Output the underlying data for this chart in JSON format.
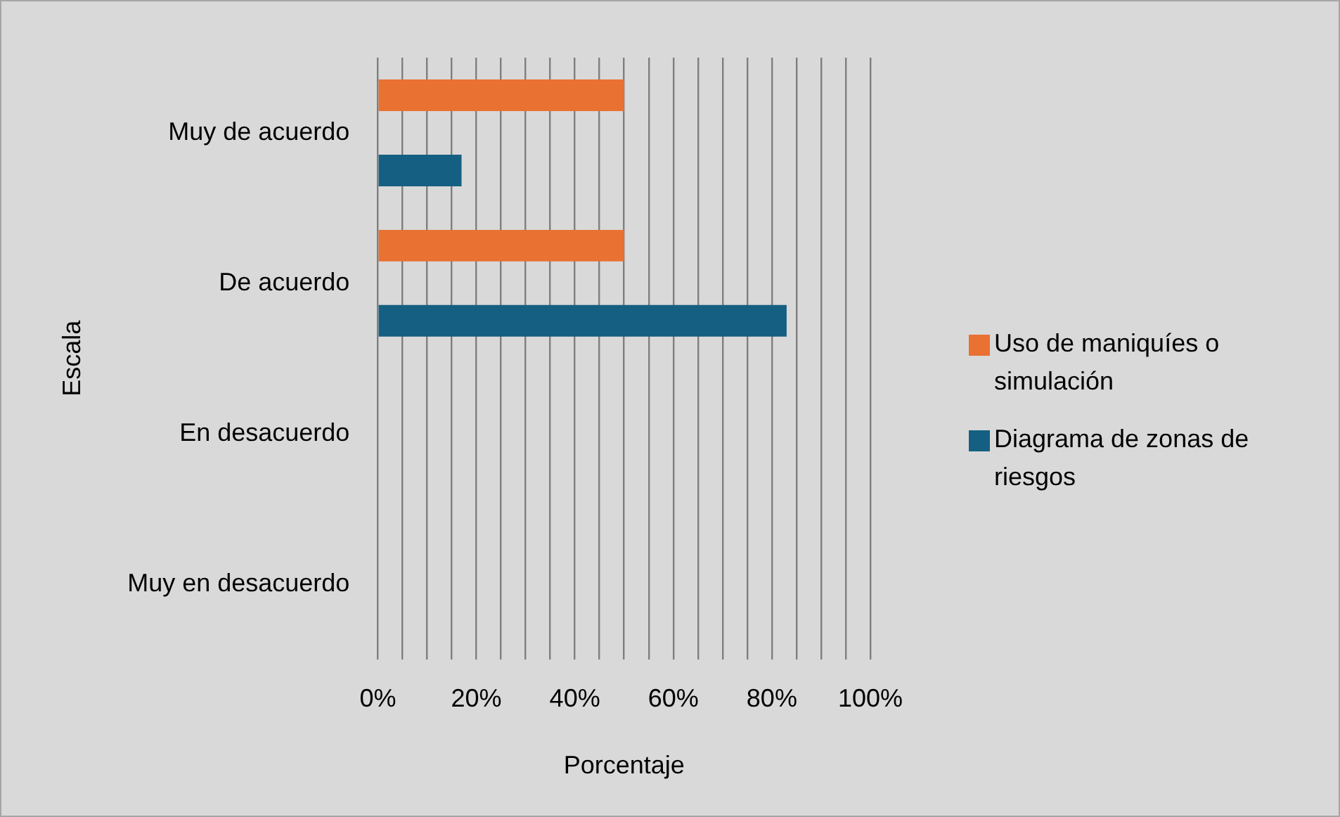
{
  "chart_data": {
    "type": "bar",
    "orientation": "horizontal",
    "ylabel": "Escala",
    "xlabel": "Porcentaje",
    "categories": [
      "Muy de acuerdo",
      "De acuerdo",
      "En desacuerdo",
      "Muy en desacuerdo"
    ],
    "series": [
      {
        "name": "Uso de maniquíes o simulación",
        "color": "#e97132",
        "values": [
          50,
          50,
          null,
          null
        ]
      },
      {
        "name": "Diagrama de zonas de riesgos",
        "color": "#156082",
        "values": [
          17,
          83,
          null,
          null
        ]
      }
    ],
    "xlim": [
      0,
      100
    ],
    "xticks": [
      {
        "value": 0,
        "label": "0%"
      },
      {
        "value": 5,
        "label": null
      },
      {
        "value": 10,
        "label": null
      },
      {
        "value": 15,
        "label": null
      },
      {
        "value": 20,
        "label": "20%"
      },
      {
        "value": 25,
        "label": null
      },
      {
        "value": 30,
        "label": null
      },
      {
        "value": 35,
        "label": null
      },
      {
        "value": 40,
        "label": "40%"
      },
      {
        "value": 45,
        "label": null
      },
      {
        "value": 50,
        "label": null
      },
      {
        "value": 55,
        "label": null
      },
      {
        "value": 60,
        "label": "60%"
      },
      {
        "value": 65,
        "label": null
      },
      {
        "value": 70,
        "label": null
      },
      {
        "value": 75,
        "label": null
      },
      {
        "value": 80,
        "label": "80%"
      },
      {
        "value": 85,
        "label": null
      },
      {
        "value": 90,
        "label": null
      },
      {
        "value": 95,
        "label": null
      },
      {
        "value": 100,
        "label": "100%"
      }
    ],
    "grid": "x",
    "legend": "right"
  }
}
